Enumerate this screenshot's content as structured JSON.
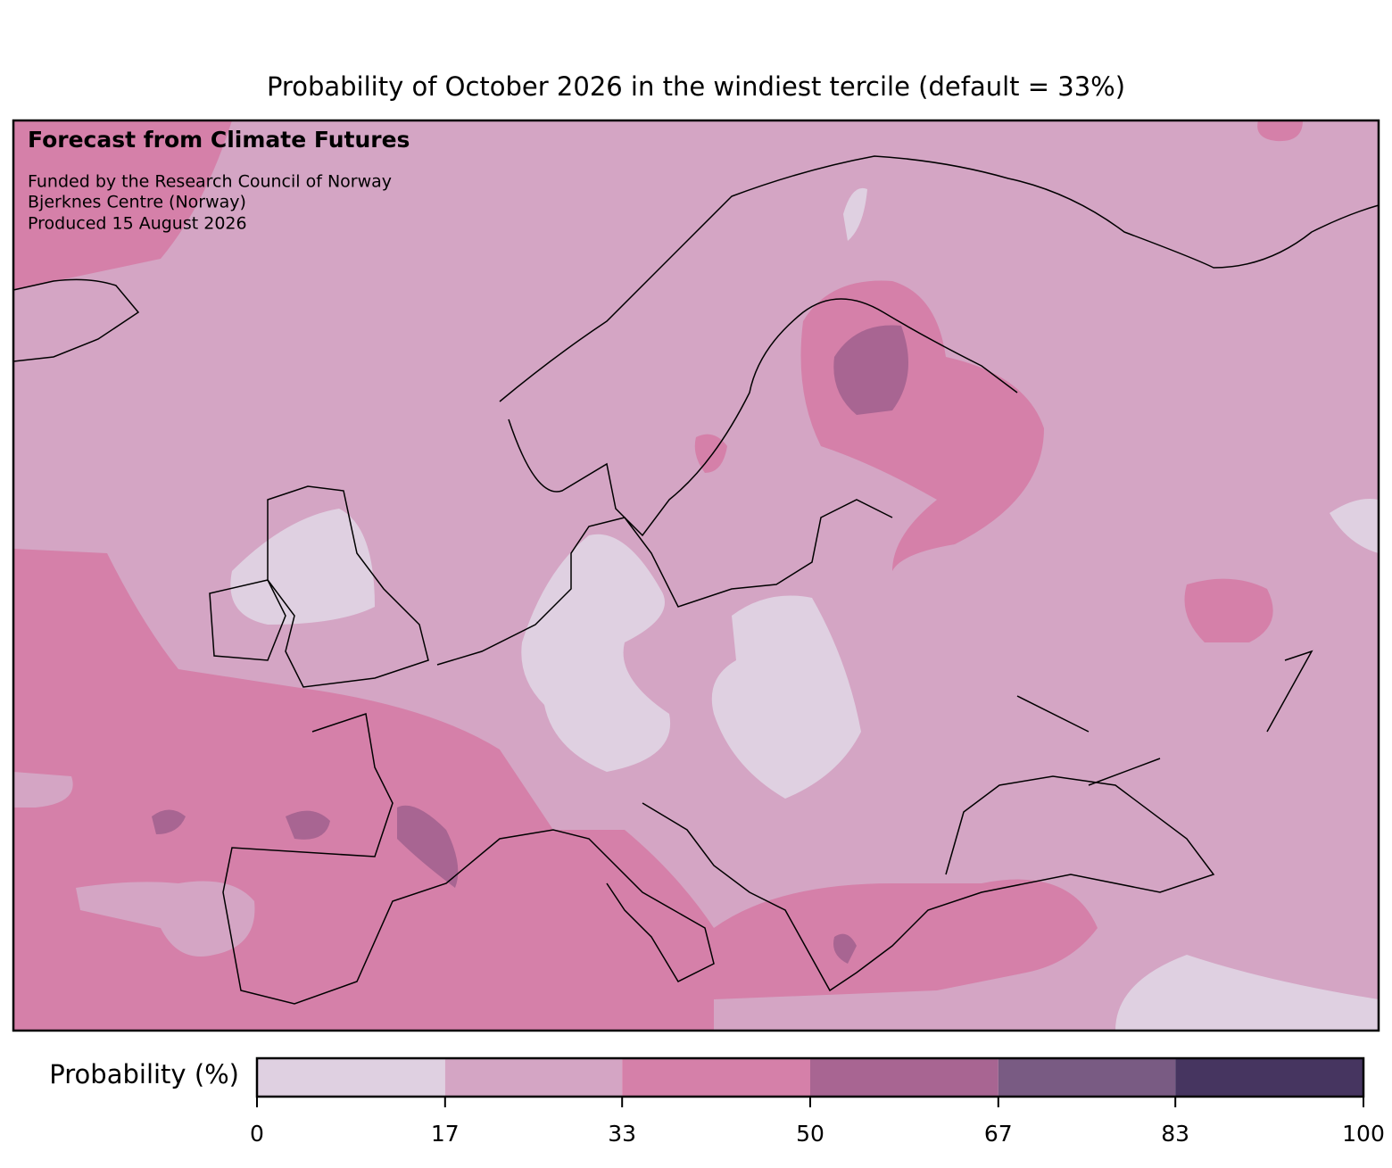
{
  "title": "Probability of October 2026 in the windiest tercile (default = 33%)",
  "annotations": {
    "heading": "Forecast from Climate Futures",
    "lines": [
      "Funded by the Research Council of Norway",
      "Bjerknes Centre (Norway)",
      "Produced 15 August 2026"
    ]
  },
  "colorbar": {
    "label": "Probability (%)",
    "xlim": [
      0,
      100
    ],
    "bins": [
      0,
      17,
      33,
      50,
      67,
      83,
      100
    ],
    "colors": [
      "#dfd0e1",
      "#d4a5c4",
      "#d580a9",
      "#a86592",
      "#795b83",
      "#463560"
    ]
  }
}
